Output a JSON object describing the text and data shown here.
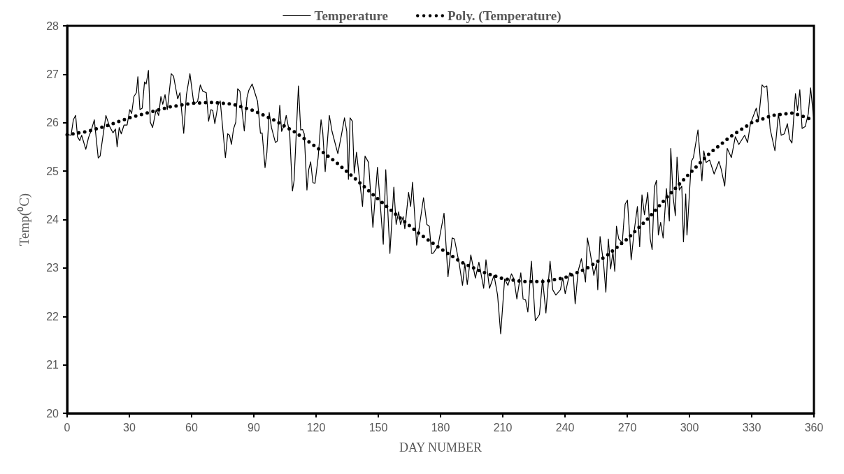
{
  "chart_data": {
    "type": "line",
    "xlabel": "DAY NUMBER",
    "ylabel": "Temp(⁰C)",
    "xlim": [
      0,
      360
    ],
    "xticks": [
      0,
      30,
      60,
      90,
      120,
      150,
      180,
      210,
      240,
      270,
      300,
      330,
      360
    ],
    "ylim": [
      20,
      28
    ],
    "yticks": [
      20,
      21,
      22,
      23,
      24,
      25,
      26,
      27,
      28
    ],
    "grid": false,
    "legend": "top",
    "marker": "none",
    "series": [
      {
        "name": "Temperature",
        "color": "#000000",
        "line_style": "solid",
        "x": [
          0,
          0.8,
          1.9,
          3.0,
          4.1,
          5.0,
          6.1,
          7.0,
          9.0,
          10.3,
          11.7,
          13.1,
          15.0,
          15.9,
          18.7,
          20.4,
          22.1,
          23.3,
          24.1,
          25.1,
          26.1,
          27.4,
          28.9,
          30.2,
          31.1,
          32.2,
          33.4,
          34.1,
          35.1,
          36.2,
          37.3,
          38.1,
          39.2,
          40.1,
          41.2,
          42.9,
          44.1,
          45.2,
          46.1,
          47.2,
          48.3,
          50.2,
          51.3,
          53.3,
          54.4,
          56.2,
          57.5,
          59.2,
          61.1,
          62.9,
          64.2,
          65.4,
          67.1,
          68.2,
          69.3,
          70.2,
          71.2,
          72.7,
          73.8,
          76.3,
          77.4,
          78.3,
          79.2,
          80.2,
          81.3,
          82.2,
          83.3,
          85.4,
          86.7,
          87.6,
          89.2,
          91.8,
          93.2,
          94.0,
          95.4,
          96.3,
          97.4,
          98.5,
          100.4,
          101.3,
          102.5,
          103.4,
          104.7,
          105.6,
          107.3,
          108.6,
          109.4,
          111.5,
          112.6,
          113.5,
          114.3,
          115.6,
          116.5,
          117.4,
          118.5,
          119.5,
          121.0,
          122.4,
          123.2,
          124.4,
          126.4,
          127.7,
          130.5,
          132.2,
          133.7,
          134.8,
          135.6,
          136.4,
          137.5,
          138.4,
          139.5,
          142.4,
          143.6,
          145.3,
          147.4,
          149.6,
          152.4,
          153.6,
          155.6,
          157.5,
          158.6,
          159.8,
          160.7,
          162.0,
          162.8,
          164.6,
          165.6,
          166.5,
          168.5,
          171.8,
          173.4,
          174.6,
          175.7,
          176.6,
          178.8,
          181.7,
          183.6,
          185.6,
          186.7,
          189.0,
          190.6,
          191.7,
          192.9,
          194.6,
          196.8,
          198.5,
          200.8,
          201.9,
          203.6,
          205.8,
          207.5,
          209.0,
          210.9,
          212.5,
          214.2,
          215.4,
          216.8,
          218.7,
          219.8,
          221.0,
          222.1,
          223.8,
          225.7,
          227.7,
          229.2,
          230.8,
          232.8,
          234.1,
          235.6,
          237.8,
          238.9,
          240.1,
          242.3,
          244.0,
          244.9,
          246.3,
          247.9,
          249.9,
          250.8,
          252.1,
          253.9,
          255.2,
          255.8,
          256.9,
          258.6,
          259.7,
          260.9,
          262.0,
          263.1,
          264.0,
          264.8,
          265.9,
          267.6,
          269.0,
          270.1,
          271.9,
          273.4,
          274.9,
          276.0,
          277.1,
          278.3,
          279.9,
          281.1,
          282.0,
          283.1,
          284.1,
          285.0,
          286.1,
          287.3,
          288.9,
          290.3,
          291.0,
          292.1,
          293.2,
          294.0,
          295.1,
          296.3,
          297.1,
          298.2,
          298.8,
          300.9,
          301.9,
          304.1,
          306.0,
          306.9,
          308.0,
          309.7,
          311.9,
          314.2,
          315.3,
          317.0,
          318.2,
          320.2,
          322.1,
          323.8,
          326.6,
          328.0,
          329.4,
          332.2,
          333.3,
          335.0,
          336.1,
          337.3,
          338.9,
          341.2,
          342.9,
          344.2,
          345.7,
          347.2,
          348.3,
          349.4,
          351.1,
          352.1,
          353.2,
          354.3,
          355.8,
          357.3,
          358.4,
          359.5,
          360
        ],
        "values": [
          25.8,
          25.75,
          25.74,
          26.06,
          26.15,
          25.71,
          25.63,
          25.74,
          25.45,
          25.69,
          25.85,
          26.06,
          25.27,
          25.31,
          26.15,
          25.93,
          25.79,
          25.87,
          25.5,
          25.9,
          25.77,
          25.95,
          25.95,
          26.27,
          26.19,
          26.54,
          26.62,
          26.95,
          26.27,
          26.3,
          26.84,
          26.8,
          27.08,
          26.01,
          25.9,
          26.27,
          26.15,
          26.54,
          26.38,
          26.58,
          26.27,
          27.01,
          26.96,
          26.49,
          26.62,
          25.78,
          26.57,
          27.01,
          26.38,
          26.44,
          26.78,
          26.65,
          26.62,
          26.03,
          26.27,
          26.25,
          25.98,
          26.36,
          26.45,
          25.28,
          25.77,
          25.74,
          25.55,
          25.87,
          26.01,
          26.7,
          26.65,
          25.83,
          26.52,
          26.67,
          26.8,
          26.44,
          25.78,
          25.79,
          25.07,
          25.39,
          26.21,
          25.9,
          25.59,
          25.62,
          26.36,
          25.82,
          25.95,
          26.15,
          25.77,
          24.59,
          24.8,
          26.76,
          25.85,
          25.86,
          25.77,
          24.61,
          25.04,
          25.19,
          24.76,
          24.75,
          25.28,
          26.06,
          25.82,
          24.99,
          26.15,
          25.82,
          25.36,
          25.74,
          26.1,
          25.82,
          24.83,
          26.1,
          26.03,
          24.96,
          25.39,
          24.27,
          25.31,
          25.18,
          23.84,
          25.08,
          23.49,
          25.03,
          23.3,
          24.67,
          23.9,
          24.16,
          23.9,
          24.06,
          23.81,
          24.56,
          24.27,
          24.77,
          23.47,
          24.45,
          23.9,
          23.86,
          23.3,
          23.31,
          23.46,
          24.13,
          22.82,
          23.62,
          23.6,
          23.09,
          22.64,
          23.09,
          22.66,
          23.27,
          22.79,
          23.12,
          22.58,
          23.17,
          22.58,
          22.85,
          22.44,
          21.64,
          22.77,
          22.64,
          22.88,
          22.77,
          22.36,
          22.9,
          22.36,
          22.34,
          22.09,
          23.14,
          21.91,
          22.04,
          22.77,
          22.07,
          23.14,
          22.55,
          22.44,
          22.55,
          22.8,
          22.47,
          22.9,
          22.85,
          22.26,
          22.93,
          23.19,
          22.71,
          23.62,
          23.33,
          22.85,
          23.09,
          22.55,
          23.65,
          23.09,
          22.5,
          23.6,
          22.98,
          23.33,
          22.93,
          23.86,
          23.6,
          23.52,
          24.32,
          24.4,
          23.17,
          23.78,
          24.27,
          23.44,
          24.51,
          24.1,
          24.56,
          23.6,
          23.38,
          24.67,
          24.81,
          23.68,
          23.94,
          23.62,
          24.64,
          23.97,
          25.47,
          24.48,
          24.08,
          25.29,
          24.61,
          24.69,
          23.54,
          24.53,
          23.68,
          25.2,
          25.28,
          25.85,
          24.8,
          25.42,
          25.18,
          25.23,
          24.94,
          25.2,
          25.04,
          24.69,
          25.47,
          25.28,
          25.71,
          25.55,
          25.74,
          25.59,
          25.98,
          26.3,
          26.06,
          26.78,
          26.73,
          26.76,
          25.87,
          25.42,
          26.19,
          25.74,
          25.77,
          25.98,
          25.66,
          25.58,
          26.6,
          26.25,
          26.68,
          25.88,
          25.92,
          26.19,
          26.72,
          26.25,
          26.05
        ]
      },
      {
        "name": "Poly. (Temperature)",
        "color": "#000000",
        "line_style": "dotted",
        "x": [
          0,
          10,
          20,
          30,
          40,
          50,
          60,
          70,
          80,
          90,
          100,
          110,
          120,
          130,
          140,
          150,
          160,
          170,
          180,
          190,
          200,
          210,
          220,
          230,
          240,
          250,
          260,
          270,
          280,
          290,
          300,
          310,
          320,
          330,
          340,
          350,
          360
        ],
        "values": [
          25.75,
          25.82,
          25.95,
          26.1,
          26.22,
          26.33,
          26.4,
          26.42,
          26.38,
          26.25,
          26.05,
          25.8,
          25.5,
          25.17,
          24.8,
          24.42,
          24.05,
          23.7,
          23.4,
          23.12,
          22.92,
          22.78,
          22.72,
          22.72,
          22.8,
          22.98,
          23.25,
          23.6,
          24.02,
          24.5,
          24.95,
          25.38,
          25.72,
          26.0,
          26.15,
          26.2,
          26.05
        ]
      }
    ]
  }
}
